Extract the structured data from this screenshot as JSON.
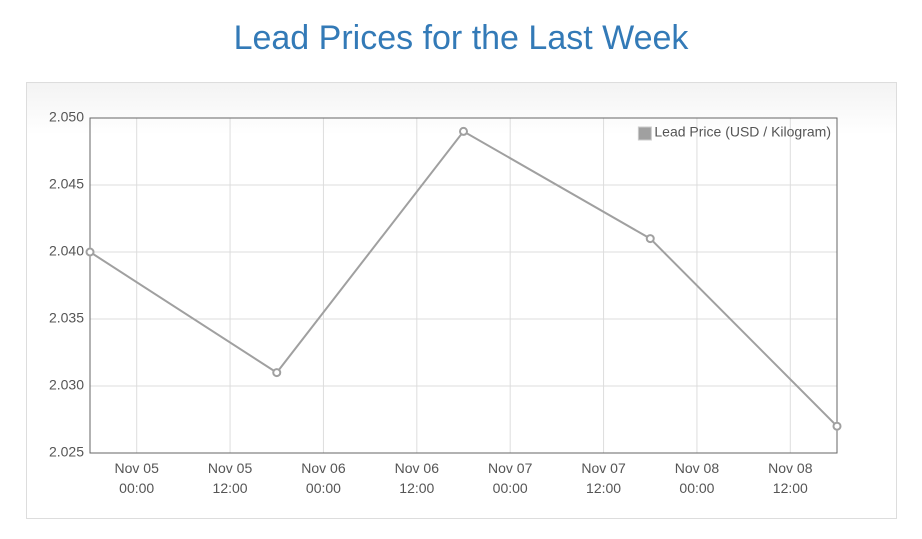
{
  "chart_data": {
    "type": "line",
    "title": "Lead Prices for the Last Week",
    "x": [
      "Nov 04 18:00",
      "Nov 05 18:00",
      "Nov 06 18:00",
      "Nov 07 18:00",
      "Nov 08 18:00"
    ],
    "series": [
      {
        "name": "Lead Price (USD / Kilogram)",
        "color": "#a0a0a0",
        "values": [
          2.04,
          2.031,
          2.049,
          2.041,
          2.027
        ]
      }
    ],
    "xlim": [
      "Nov 04 18:00",
      "Nov 08 18:00"
    ],
    "xticks": [
      "Nov 05 00:00",
      "Nov 05 12:00",
      "Nov 06 00:00",
      "Nov 06 12:00",
      "Nov 07 00:00",
      "Nov 07 12:00",
      "Nov 08 00:00",
      "Nov 08 12:00"
    ],
    "ylim": [
      2.025,
      2.05
    ],
    "yticks": [
      {
        "value": 2.025,
        "label": "2.025"
      },
      {
        "value": 2.03,
        "label": "2.030"
      },
      2.035,
      {
        "value": 2.04,
        "label": "2.040"
      },
      2.045,
      {
        "value": 2.05,
        "label": "2.050"
      }
    ],
    "grid": true,
    "legend": "top-right"
  }
}
